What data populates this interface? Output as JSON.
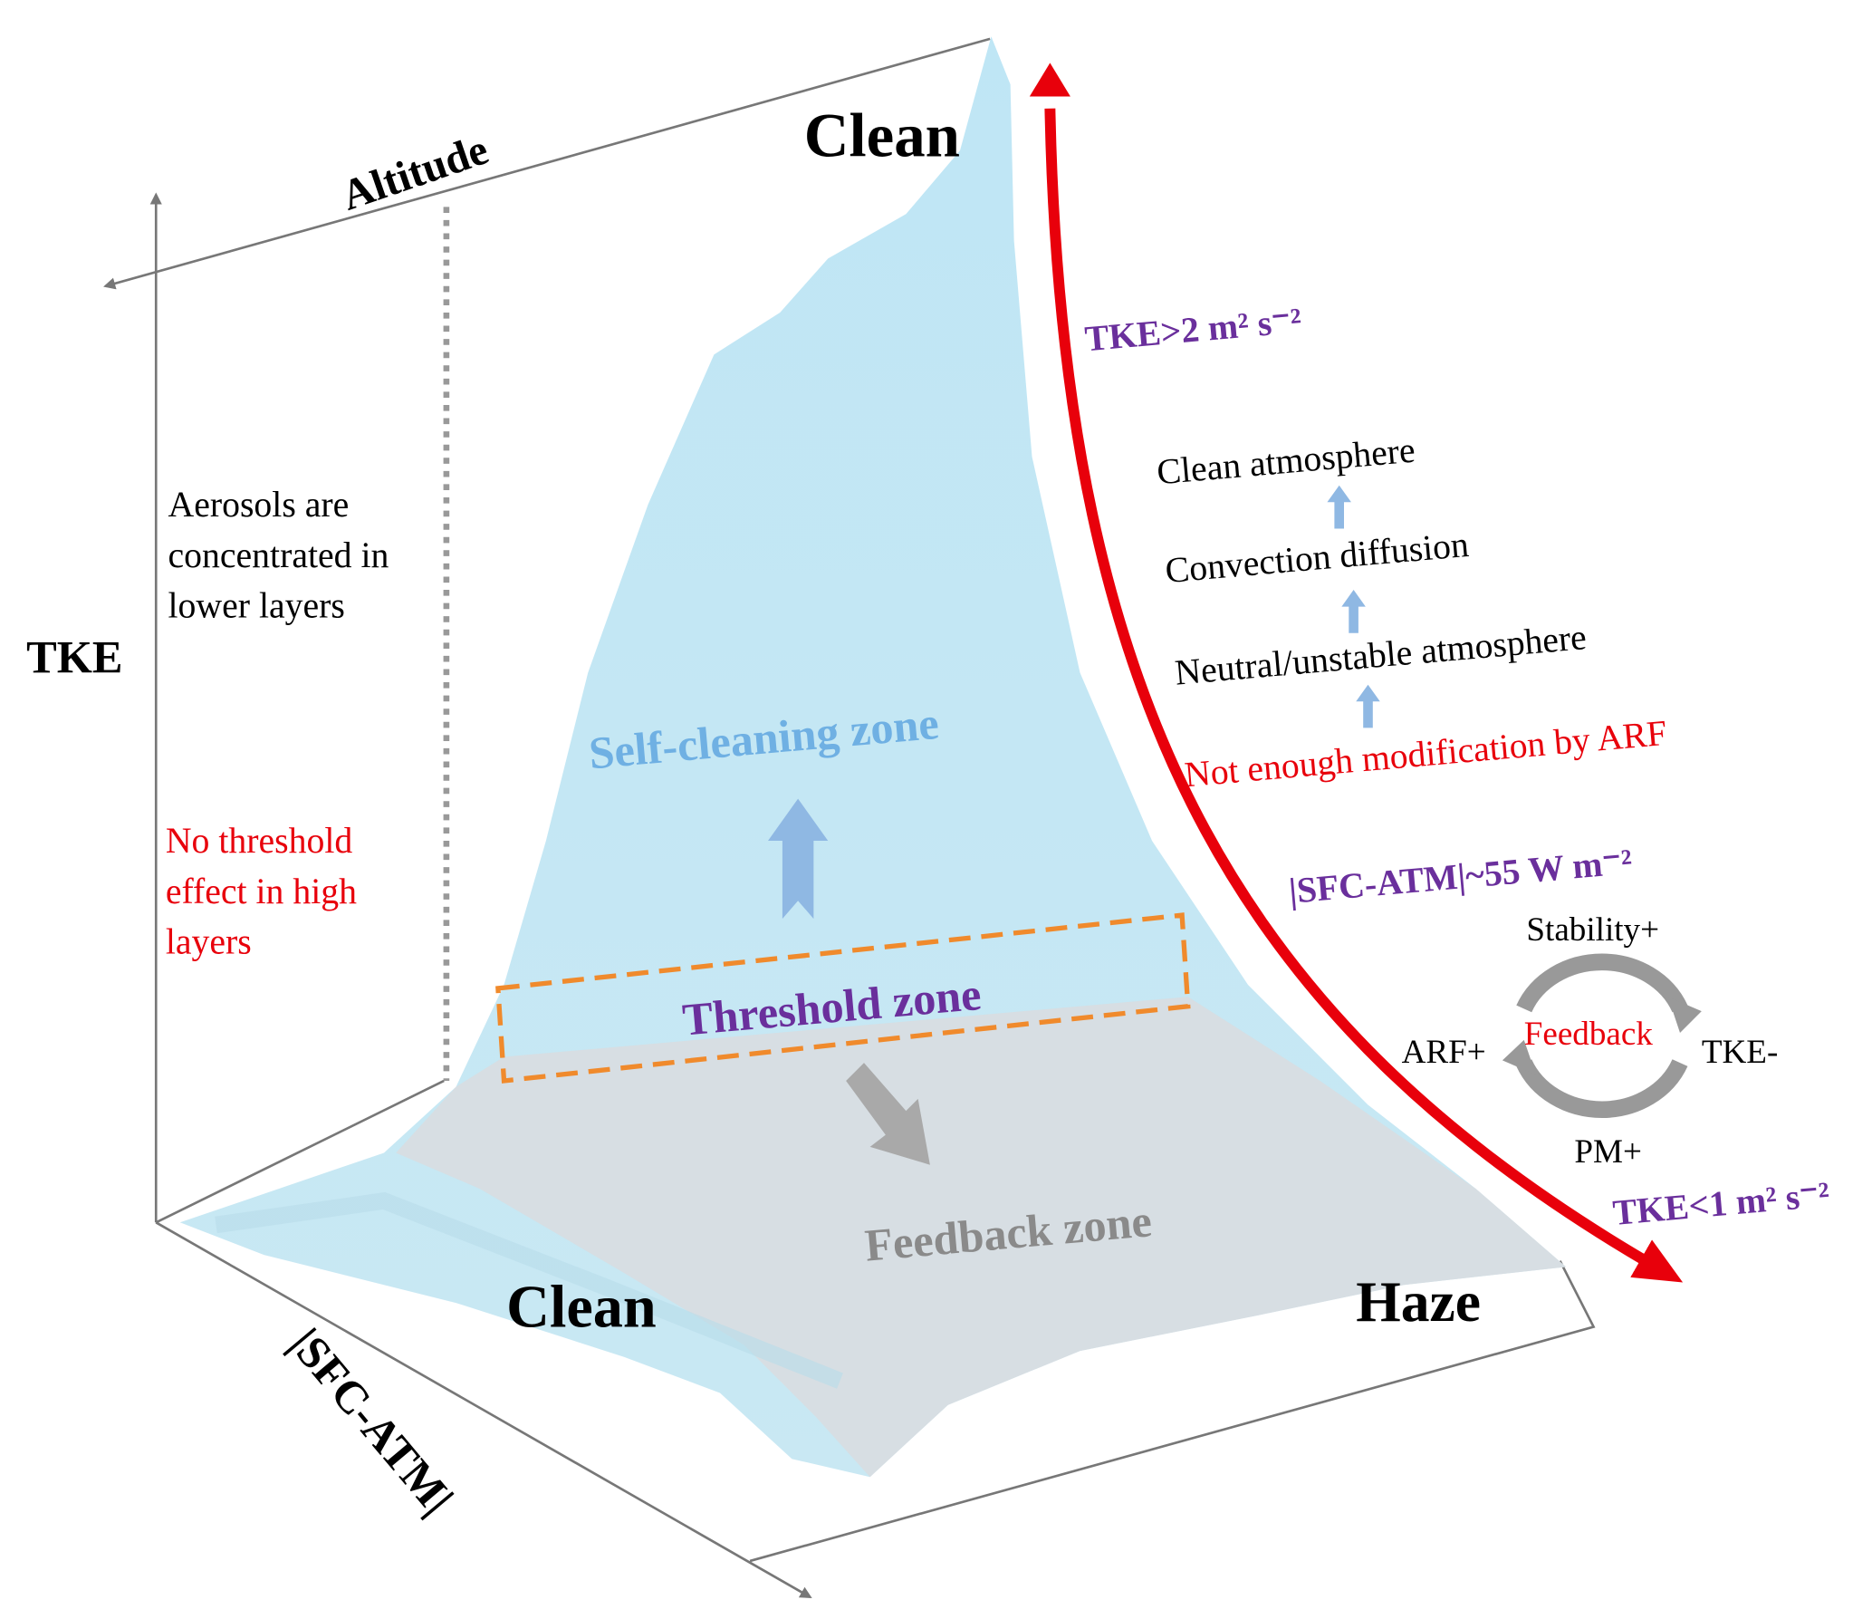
{
  "axes": {
    "y_axis": "TKE",
    "depth_axis": "Altitude",
    "x_axis": "|SFC-ATM|"
  },
  "regions": {
    "clean_top": "Clean",
    "clean_bottom": "Clean",
    "haze": "Haze"
  },
  "zones": {
    "self_cleaning": "Self-cleaning zone",
    "threshold": "Threshold zone",
    "feedback": "Feedback zone"
  },
  "left_notes": {
    "aerosols": [
      "Aerosols are",
      "concentrated in",
      "lower layers"
    ],
    "no_threshold": [
      "No threshold",
      "effect in high",
      "layers"
    ]
  },
  "thresholds": {
    "tke_high": "TKE>2 m² s⁻²",
    "sfc_atm": "|SFC-ATM|~55 W m⁻²",
    "tke_low": "TKE<1 m² s⁻²"
  },
  "process_steps": [
    "Clean atmosphere",
    "Convection diffusion",
    "Neutral/unstable atmosphere",
    "Not enough modification by ARF"
  ],
  "feedback_loop": {
    "center": "Feedback",
    "top": "Stability+",
    "right": "TKE-",
    "bottom": "PM+",
    "left": "ARF+"
  }
}
